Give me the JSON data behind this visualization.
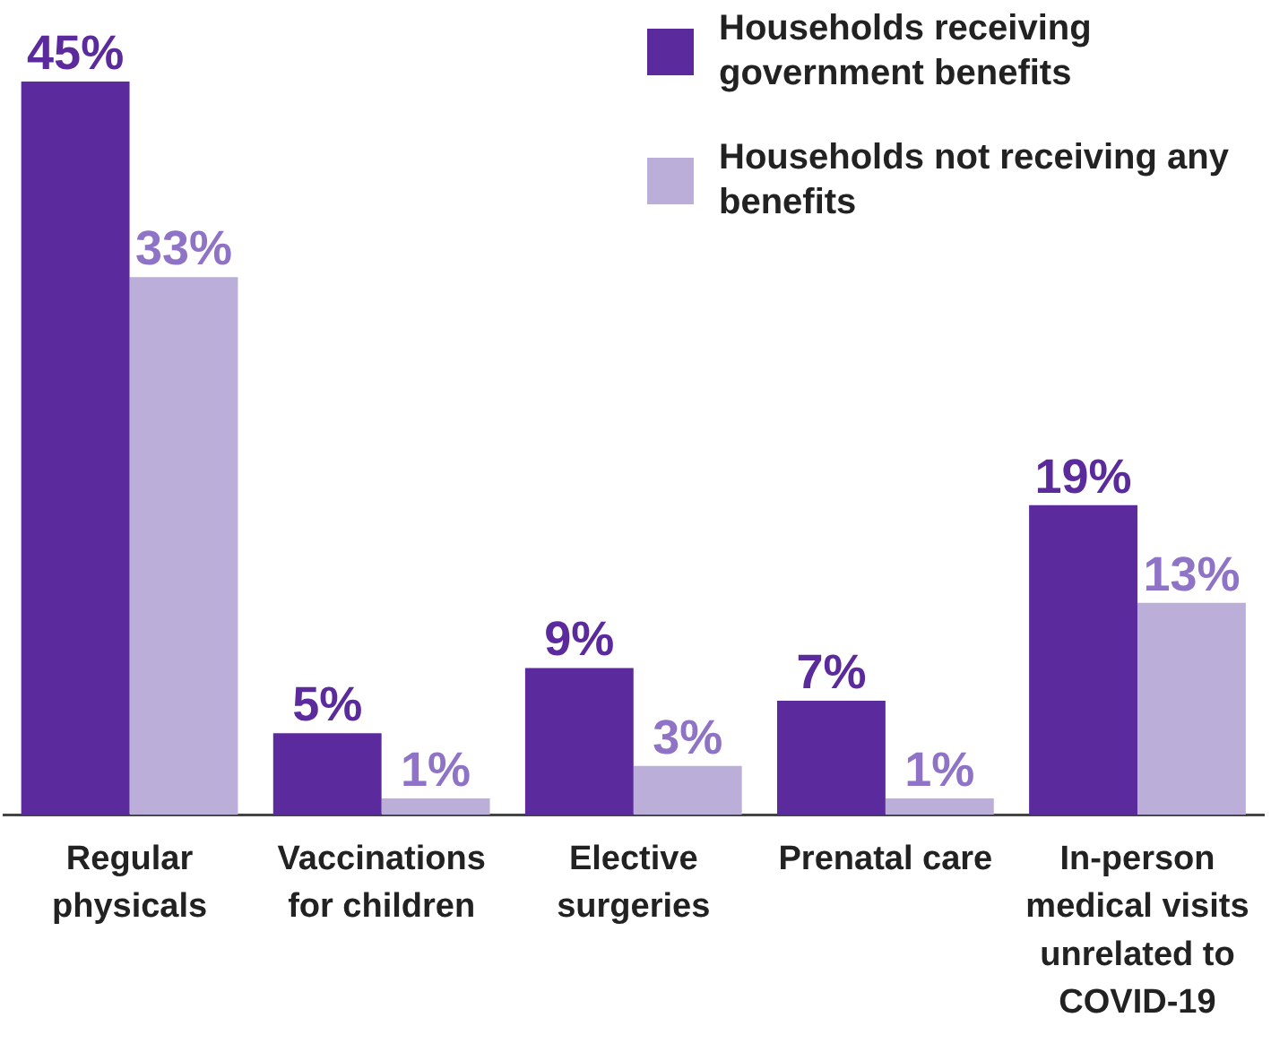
{
  "chart_data": {
    "type": "bar",
    "categories": [
      "Regular physicals",
      "Vaccinations for children",
      "Elective surgeries",
      "Prenatal care",
      "In-person medical visits unrelated to COVID-19"
    ],
    "series": [
      {
        "name": "Households receiving government benefits",
        "color": "#5b2b9d",
        "values": [
          45,
          5,
          9,
          7,
          19
        ],
        "value_labels": [
          "45%",
          "5%",
          "9%",
          "7%",
          "19%"
        ]
      },
      {
        "name": "Households not receiving any benefits",
        "color": "#bbaed8",
        "values": [
          33,
          1,
          3,
          1,
          13
        ],
        "value_labels": [
          "33%",
          "1%",
          "3%",
          "1%",
          "13%"
        ]
      }
    ],
    "tick_labels": "x",
    "grid": false,
    "legend": "top right"
  }
}
